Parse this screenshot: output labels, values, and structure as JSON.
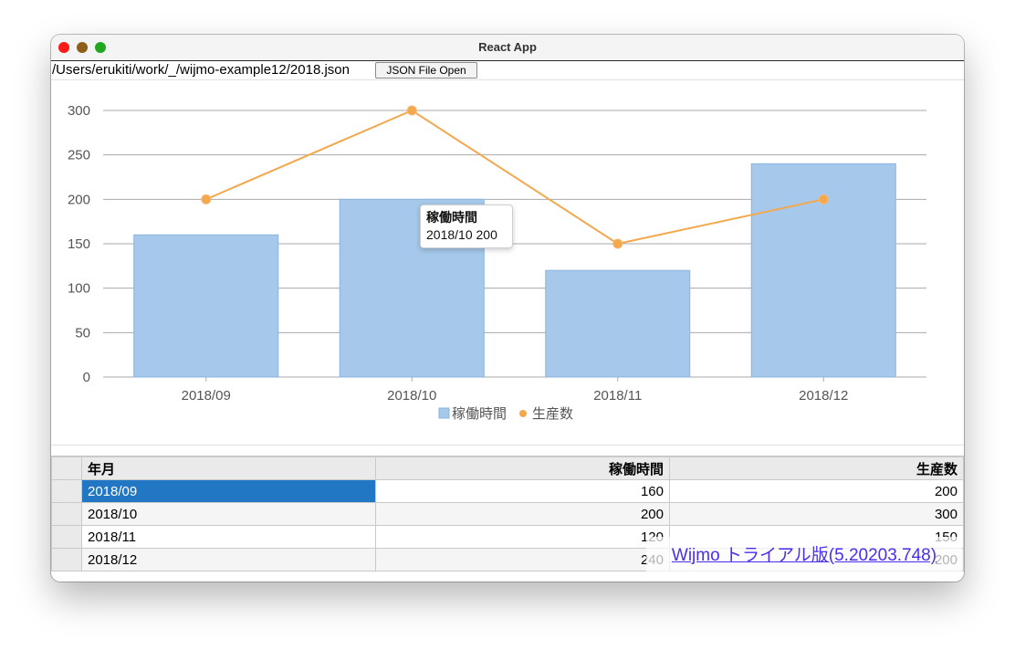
{
  "window": {
    "title": "React App",
    "file_path": "/Users/erukiti/work/_/wijmo-example12/2018.json",
    "open_button_label": "JSON File Open"
  },
  "colors": {
    "bar": "#a6c8ea",
    "bar_stroke": "#8ab4de",
    "line": "#f3a84e",
    "selected": "#2277c4",
    "watermark": "#4a2ef0"
  },
  "chart_data": {
    "type": "bar",
    "categories": [
      "2018/09",
      "2018/10",
      "2018/11",
      "2018/12"
    ],
    "series": [
      {
        "name": "稼働時間",
        "type": "bar",
        "values": [
          160,
          200,
          120,
          240
        ]
      },
      {
        "name": "生産数",
        "type": "line",
        "values": [
          200,
          300,
          150,
          200
        ]
      }
    ],
    "ylim": [
      0,
      300
    ],
    "yticks": [
      0,
      50,
      100,
      150,
      200,
      250,
      300
    ],
    "grid": true,
    "legend": "bottom"
  },
  "tooltip": {
    "title": "稼働時間",
    "body": "2018/10 200"
  },
  "grid": {
    "headers": [
      "年月",
      "稼働時間",
      "生産数"
    ],
    "rows": [
      [
        "2018/09",
        "160",
        "200"
      ],
      [
        "2018/10",
        "200",
        "300"
      ],
      [
        "2018/11",
        "120",
        "150"
      ],
      [
        "2018/12",
        "240",
        "200"
      ]
    ]
  },
  "watermark": "Wijmo トライアル版(5.20203.748)"
}
